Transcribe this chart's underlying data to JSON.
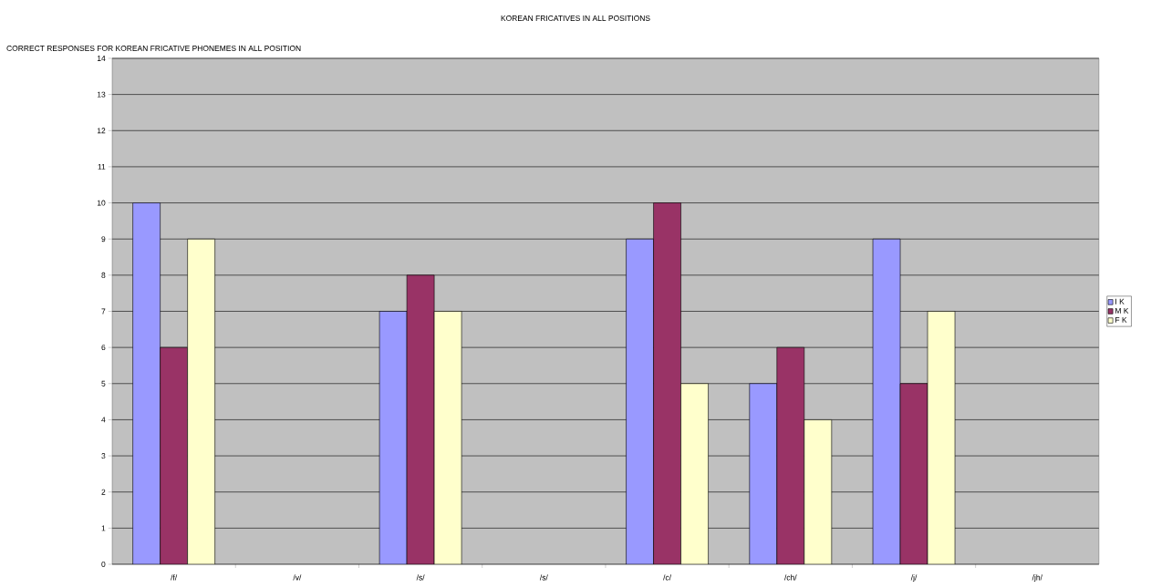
{
  "chart_data": {
    "type": "bar",
    "title": "KOREAN FRICATIVES IN ALL POSITIONS",
    "ylabel": "CORRECT RESPONSES FOR KOREAN FRICATIVE PHONEMES IN ALL POSITION",
    "categories": [
      "/f/",
      "/v/",
      "/s/",
      "/s/",
      "/c/",
      "/ch/",
      "/j/",
      "/jh/"
    ],
    "series": [
      {
        "name": "I K",
        "color": "#9999ff",
        "values": [
          10,
          null,
          7,
          null,
          9,
          5,
          9,
          null
        ]
      },
      {
        "name": "M K",
        "color": "#993366",
        "values": [
          6,
          null,
          8,
          null,
          10,
          6,
          5,
          null
        ]
      },
      {
        "name": "F K",
        "color": "#ffffcc",
        "values": [
          9,
          null,
          7,
          null,
          5,
          4,
          7,
          null
        ]
      }
    ],
    "ylim": [
      0,
      14
    ],
    "yticks": [
      0,
      1,
      2,
      3,
      4,
      5,
      6,
      7,
      8,
      9,
      10,
      11,
      12,
      13,
      14
    ],
    "grid": "y",
    "legend": "right"
  }
}
